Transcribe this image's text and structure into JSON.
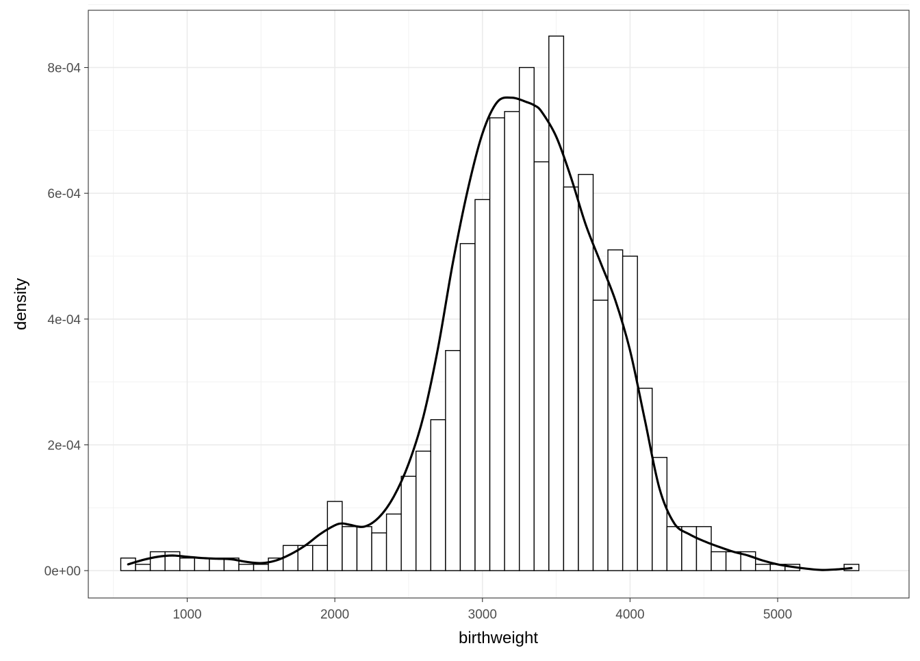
{
  "chart_data": {
    "type": "bar",
    "subtype": "histogram-with-density",
    "xlabel": "birthweight",
    "ylabel": "density",
    "xlim": [
      330,
      5890
    ],
    "ylim": [
      -4.35e-05,
      0.000891
    ],
    "x_ticks": [
      1000,
      2000,
      3000,
      4000,
      5000
    ],
    "x_tick_labels": [
      "1000",
      "2000",
      "3000",
      "4000",
      "5000"
    ],
    "y_ticks": [
      0,
      0.0002,
      0.0004,
      0.0006,
      0.0008
    ],
    "y_tick_labels": [
      "0e+00",
      "2e-04",
      "4e-04",
      "6e-04",
      "8e-04"
    ],
    "grid": true,
    "legend": "none",
    "bin_width": 100,
    "bins": {
      "x_start": [
        550,
        650,
        750,
        850,
        950,
        1050,
        1150,
        1250,
        1350,
        1450,
        1550,
        1650,
        1750,
        1850,
        1950,
        2050,
        2150,
        2250,
        2350,
        2450,
        2550,
        2650,
        2750,
        2850,
        2950,
        3050,
        3150,
        3250,
        3350,
        3450,
        3550,
        3650,
        3750,
        3850,
        3950,
        4050,
        4150,
        4250,
        4350,
        4450,
        4550,
        4650,
        4750,
        4850,
        4950,
        5050,
        5150,
        5250,
        5350,
        5450
      ],
      "values": [
        2e-05,
        1e-05,
        3e-05,
        3e-05,
        2e-05,
        2e-05,
        2e-05,
        2e-05,
        1e-05,
        1e-05,
        2e-05,
        4e-05,
        4e-05,
        4e-05,
        0.00011,
        7e-05,
        7e-05,
        6e-05,
        9e-05,
        0.00015,
        0.00019,
        0.00024,
        0.00035,
        0.00052,
        0.00059,
        0.00072,
        0.00073,
        0.0008,
        0.00065,
        0.00085,
        0.00061,
        0.00063,
        0.00043,
        0.00051,
        0.0005,
        0.00029,
        0.00018,
        7e-05,
        7e-05,
        7e-05,
        3e-05,
        3e-05,
        3e-05,
        1e-05,
        1e-05,
        1e-05,
        0,
        0,
        0,
        1e-05
      ]
    },
    "density_curve": {
      "x": [
        600,
        700,
        800,
        900,
        1000,
        1100,
        1200,
        1300,
        1400,
        1500,
        1600,
        1700,
        1800,
        1900,
        2000,
        2050,
        2100,
        2200,
        2300,
        2400,
        2500,
        2600,
        2700,
        2800,
        2900,
        3000,
        3100,
        3200,
        3300,
        3350,
        3400,
        3500,
        3600,
        3700,
        3800,
        3900,
        4000,
        4100,
        4200,
        4300,
        4400,
        4500,
        4600,
        4700,
        4800,
        4900,
        5000,
        5100,
        5200,
        5300,
        5400,
        5500
      ],
      "y": [
        1e-05,
        1.7e-05,
        2.2e-05,
        2.4e-05,
        2.2e-05,
        2e-05,
        1.9e-05,
        1.8e-05,
        1.4e-05,
        1.2e-05,
        1.6e-05,
        2.6e-05,
        4e-05,
        5.8e-05,
        7.2e-05,
        7.5e-05,
        7.3e-05,
        7e-05,
        8.5e-05,
        0.000118,
        0.00017,
        0.000245,
        0.000355,
        0.00049,
        0.000605,
        0.000695,
        0.000745,
        0.000752,
        0.000745,
        0.00074,
        0.00073,
        0.00069,
        0.000625,
        0.00055,
        0.00049,
        0.00043,
        0.00035,
        0.00024,
        0.00013,
        7.5e-05,
        5.8e-05,
        4.7e-05,
        3.8e-05,
        3e-05,
        2.4e-05,
        1.6e-05,
        1e-05,
        6e-06,
        3e-06,
        1e-06,
        2e-06,
        4e-06
      ]
    }
  }
}
